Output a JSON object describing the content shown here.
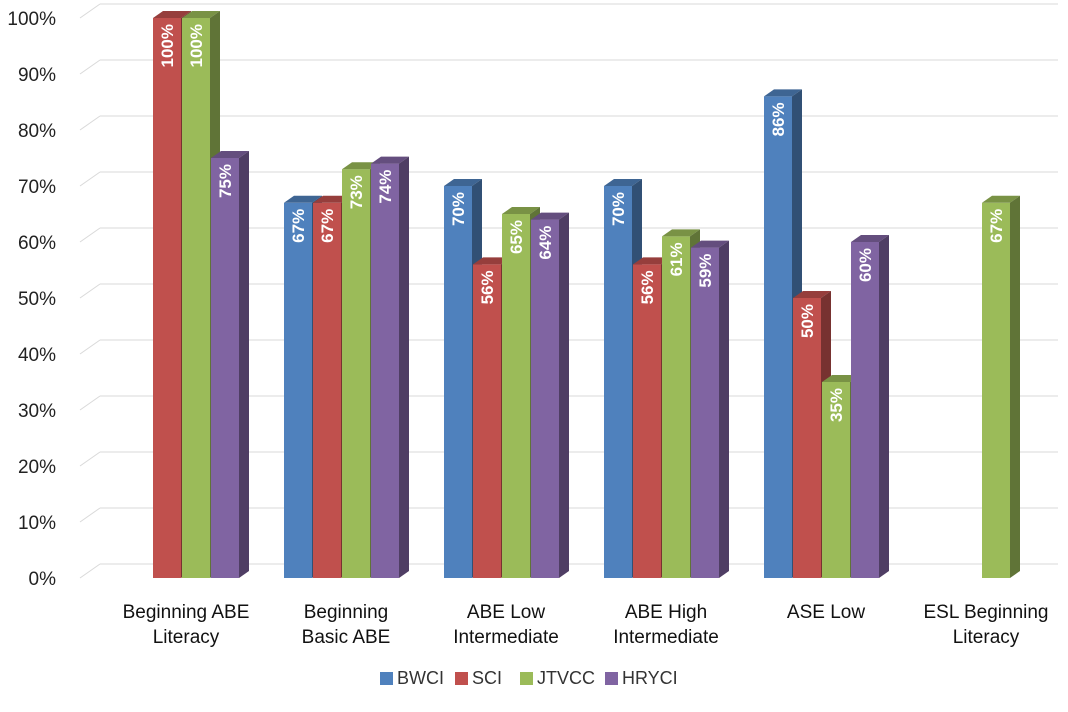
{
  "chart_data": {
    "type": "bar",
    "title": "",
    "xlabel": "",
    "ylabel": "",
    "ylim": [
      0,
      100
    ],
    "y_ticks": [
      "0%",
      "10%",
      "20%",
      "30%",
      "40%",
      "50%",
      "60%",
      "70%",
      "80%",
      "90%",
      "100%"
    ],
    "grid": true,
    "legend_position": "bottom",
    "categories": [
      [
        "Beginning ABE",
        "Literacy"
      ],
      [
        "Beginning",
        "Basic ABE"
      ],
      [
        "ABE Low",
        "Intermediate"
      ],
      [
        "ABE High",
        "Intermediate"
      ],
      [
        "ASE Low"
      ],
      [
        "ESL Beginning",
        "Literacy"
      ]
    ],
    "series": [
      {
        "name": "BWCI",
        "color": "#4f81bd",
        "values": [
          null,
          67,
          70,
          70,
          86,
          null
        ],
        "labels": [
          null,
          "67%",
          "70%",
          "70%",
          "86%",
          null
        ]
      },
      {
        "name": "SCI",
        "color": "#c0504d",
        "values": [
          100,
          67,
          56,
          56,
          50,
          null
        ],
        "labels": [
          "100%",
          "67%",
          "56%",
          "56%",
          "50%",
          null
        ]
      },
      {
        "name": "JTVCC",
        "color": "#9bbb59",
        "values": [
          100,
          73,
          65,
          61,
          35,
          67
        ],
        "labels": [
          "100%",
          "73%",
          "65%",
          "61%",
          "35%",
          "67%"
        ]
      },
      {
        "name": "HRYCI",
        "color": "#8064a2",
        "values": [
          75,
          74,
          64,
          59,
          60,
          null
        ],
        "labels": [
          "75%",
          "74%",
          "64%",
          "59%",
          "60%",
          null
        ]
      }
    ]
  }
}
